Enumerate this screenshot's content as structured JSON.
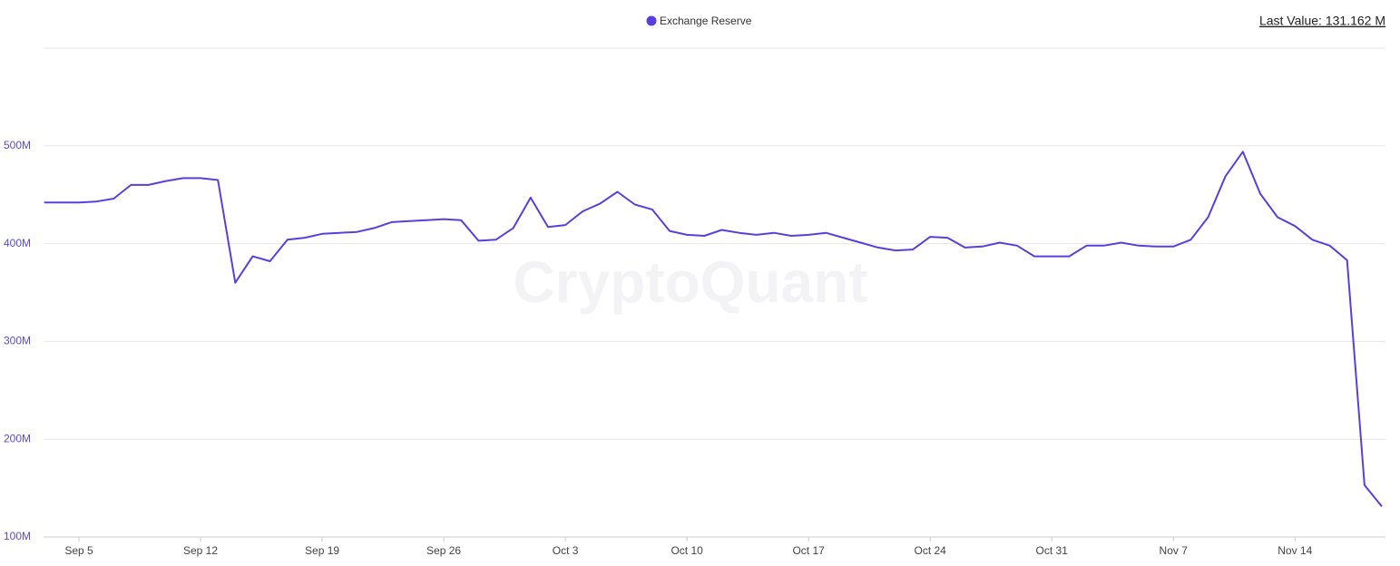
{
  "chart_data": {
    "type": "line",
    "last_value_label": "Last Value: 131.162 M",
    "watermark": "CryptoQuant",
    "categories": [
      null,
      null,
      "Sep 5",
      null,
      null,
      null,
      null,
      null,
      null,
      "Sep 12",
      null,
      null,
      null,
      null,
      null,
      null,
      "Sep 19",
      null,
      null,
      null,
      null,
      null,
      null,
      "Sep 26",
      null,
      null,
      null,
      null,
      null,
      null,
      "Oct 3",
      null,
      null,
      null,
      null,
      null,
      null,
      "Oct 10",
      null,
      null,
      null,
      null,
      null,
      null,
      "Oct 17",
      null,
      null,
      null,
      null,
      null,
      null,
      "Oct 24",
      null,
      null,
      null,
      null,
      null,
      null,
      "Oct 31",
      null,
      null,
      null,
      null,
      null,
      null,
      "Nov 7",
      null,
      null,
      null,
      null,
      null,
      null,
      "Nov 14",
      null,
      null,
      null,
      null,
      null
    ],
    "series": [
      {
        "name": "Exchange Reserve",
        "color": "#5a3fdc",
        "values": [
          442,
          442,
          442,
          443,
          446,
          460,
          460,
          464,
          467,
          467,
          465,
          360,
          387,
          382,
          404,
          406,
          410,
          411,
          412,
          416,
          422,
          423,
          424,
          425,
          424,
          403,
          404,
          416,
          447,
          417,
          419,
          433,
          441,
          453,
          440,
          435,
          413,
          409,
          408,
          414,
          411,
          409,
          411,
          408,
          409,
          411,
          406,
          401,
          396,
          393,
          394,
          407,
          406,
          396,
          397,
          401,
          398,
          387,
          387,
          387,
          398,
          398,
          401,
          398,
          397,
          397,
          404,
          427,
          469,
          494,
          451,
          427,
          418,
          404,
          398,
          383,
          153,
          131.162
        ]
      }
    ],
    "ylim": [
      100,
      600
    ],
    "yticks": [
      {
        "value": 100,
        "label": "100M"
      },
      {
        "value": 200,
        "label": "200M"
      },
      {
        "value": 300,
        "label": "300M"
      },
      {
        "value": 400,
        "label": "400M"
      },
      {
        "value": 500,
        "label": "500M"
      }
    ],
    "grid": true
  }
}
